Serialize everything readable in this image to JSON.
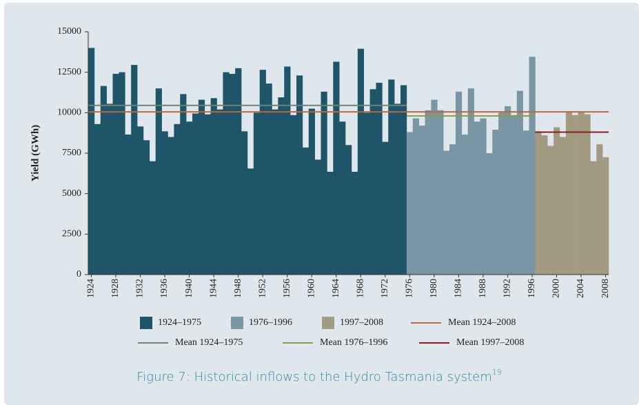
{
  "chart_data": {
    "type": "bar",
    "y_label": "Yield (GWh)",
    "caption": "Figure 7: Historical inflows to the Hydro Tasmania system",
    "caption_note": "19",
    "x": [
      1924,
      1925,
      1926,
      1927,
      1928,
      1929,
      1930,
      1931,
      1932,
      1933,
      1934,
      1935,
      1936,
      1937,
      1938,
      1939,
      1940,
      1941,
      1942,
      1943,
      1944,
      1945,
      1946,
      1947,
      1948,
      1949,
      1950,
      1951,
      1952,
      1953,
      1954,
      1955,
      1956,
      1957,
      1958,
      1959,
      1960,
      1961,
      1962,
      1963,
      1964,
      1965,
      1966,
      1967,
      1968,
      1969,
      1970,
      1971,
      1972,
      1973,
      1974,
      1975,
      1976,
      1977,
      1978,
      1979,
      1980,
      1981,
      1982,
      1983,
      1984,
      1985,
      1986,
      1987,
      1988,
      1989,
      1990,
      1991,
      1992,
      1993,
      1994,
      1995,
      1996,
      1997,
      1998,
      1999,
      2000,
      2001,
      2002,
      2003,
      2004,
      2005,
      2006,
      2007,
      2008
    ],
    "xlim": [
      1923.5,
      2008.5
    ],
    "xticks": [
      1924,
      1928,
      1932,
      1936,
      1940,
      1944,
      1948,
      1952,
      1956,
      1960,
      1964,
      1968,
      1972,
      1976,
      1980,
      1984,
      1988,
      1992,
      1996,
      2000,
      2004,
      2008
    ],
    "ylim": [
      0,
      15000
    ],
    "yticks": [
      0,
      2500,
      5000,
      7500,
      10000,
      12500,
      15000
    ],
    "series": [
      {
        "name": "1924–1975",
        "kind": "bar",
        "color": "#1f5569",
        "values": [
          14000,
          9300,
          11650,
          10550,
          12400,
          12500,
          8650,
          12950,
          9150,
          8300,
          7000,
          11500,
          8850,
          8500,
          9300,
          11150,
          9450,
          9950,
          10800,
          9900,
          10900,
          10200,
          12500,
          12400,
          12750,
          8850,
          6550,
          10000,
          12650,
          11800,
          10200,
          10950,
          12850,
          9850,
          12300,
          7850,
          10250,
          7100,
          11300,
          6350,
          13150,
          9450,
          8000,
          6350,
          13950,
          10000,
          11450,
          11850,
          8200,
          12050,
          10550,
          11700,
          null,
          null,
          null,
          null,
          null,
          null,
          null,
          null,
          null,
          null,
          null,
          null,
          null,
          null,
          null,
          null,
          null,
          null,
          null,
          null,
          null,
          null,
          null,
          null,
          null,
          null,
          null,
          null,
          null,
          null,
          null,
          null,
          null
        ]
      },
      {
        "name": "1976–1996",
        "kind": "bar",
        "color": "#7896a4",
        "values": [
          null,
          null,
          null,
          null,
          null,
          null,
          null,
          null,
          null,
          null,
          null,
          null,
          null,
          null,
          null,
          null,
          null,
          null,
          null,
          null,
          null,
          null,
          null,
          null,
          null,
          null,
          null,
          null,
          null,
          null,
          null,
          null,
          null,
          null,
          null,
          null,
          null,
          null,
          null,
          null,
          null,
          null,
          null,
          null,
          null,
          null,
          null,
          null,
          null,
          null,
          null,
          null,
          8800,
          9650,
          9200,
          10150,
          10800,
          10150,
          7650,
          8050,
          11300,
          8650,
          11500,
          9450,
          9650,
          7500,
          8950,
          10000,
          10400,
          9850,
          11350,
          8900,
          13450,
          null,
          null,
          null,
          null,
          null,
          null,
          null,
          null,
          null,
          null,
          null,
          null
        ]
      },
      {
        "name": "1997–2008",
        "kind": "bar",
        "color": "#a39a82",
        "values": [
          null,
          null,
          null,
          null,
          null,
          null,
          null,
          null,
          null,
          null,
          null,
          null,
          null,
          null,
          null,
          null,
          null,
          null,
          null,
          null,
          null,
          null,
          null,
          null,
          null,
          null,
          null,
          null,
          null,
          null,
          null,
          null,
          null,
          null,
          null,
          null,
          null,
          null,
          null,
          null,
          null,
          null,
          null,
          null,
          null,
          null,
          null,
          null,
          null,
          null,
          null,
          null,
          null,
          null,
          null,
          null,
          null,
          null,
          null,
          null,
          null,
          null,
          null,
          null,
          null,
          null,
          null,
          null,
          null,
          null,
          null,
          null,
          null,
          8850,
          8600,
          7950,
          9100,
          8500,
          10100,
          9850,
          10050,
          9900,
          7000,
          8050,
          7250
        ]
      },
      {
        "name": "Mean 1924–2008",
        "kind": "line",
        "color": "#c0673a",
        "values": [
          10050,
          10050,
          10050,
          10050,
          10050,
          10050,
          10050,
          10050,
          10050,
          10050,
          10050,
          10050,
          10050,
          10050,
          10050,
          10050,
          10050,
          10050,
          10050,
          10050,
          10050,
          10050,
          10050,
          10050,
          10050,
          10050,
          10050,
          10050,
          10050,
          10050,
          10050,
          10050,
          10050,
          10050,
          10050,
          10050,
          10050,
          10050,
          10050,
          10050,
          10050,
          10050,
          10050,
          10050,
          10050,
          10050,
          10050,
          10050,
          10050,
          10050,
          10050,
          10050,
          10050,
          10050,
          10050,
          10050,
          10050,
          10050,
          10050,
          10050,
          10050,
          10050,
          10050,
          10050,
          10050,
          10050,
          10050,
          10050,
          10050,
          10050,
          10050,
          10050,
          10050,
          10050,
          10050,
          10050,
          10050,
          10050,
          10050,
          10050,
          10050,
          10050,
          10050,
          10050,
          10050
        ]
      },
      {
        "name": "Mean 1924–1975",
        "kind": "line",
        "color": "#6f7f7a",
        "values": [
          10450,
          10450,
          10450,
          10450,
          10450,
          10450,
          10450,
          10450,
          10450,
          10450,
          10450,
          10450,
          10450,
          10450,
          10450,
          10450,
          10450,
          10450,
          10450,
          10450,
          10450,
          10450,
          10450,
          10450,
          10450,
          10450,
          10450,
          10450,
          10450,
          10450,
          10450,
          10450,
          10450,
          10450,
          10450,
          10450,
          10450,
          10450,
          10450,
          10450,
          10450,
          10450,
          10450,
          10450,
          10450,
          10450,
          10450,
          10450,
          10450,
          10450,
          10450,
          10450,
          null,
          null,
          null,
          null,
          null,
          null,
          null,
          null,
          null,
          null,
          null,
          null,
          null,
          null,
          null,
          null,
          null,
          null,
          null,
          null,
          null,
          null,
          null,
          null,
          null,
          null,
          null,
          null,
          null,
          null,
          null,
          null,
          null
        ]
      },
      {
        "name": "Mean 1976–1996",
        "kind": "line",
        "color": "#8f9a4a",
        "values": [
          null,
          null,
          null,
          null,
          null,
          null,
          null,
          null,
          null,
          null,
          null,
          null,
          null,
          null,
          null,
          null,
          null,
          null,
          null,
          null,
          null,
          null,
          null,
          null,
          null,
          null,
          null,
          null,
          null,
          null,
          null,
          null,
          null,
          null,
          null,
          null,
          null,
          null,
          null,
          null,
          null,
          null,
          null,
          null,
          null,
          null,
          null,
          null,
          null,
          null,
          null,
          null,
          9800,
          9800,
          9800,
          9800,
          9800,
          9800,
          9800,
          9800,
          9800,
          9800,
          9800,
          9800,
          9800,
          9800,
          9800,
          9800,
          9800,
          9800,
          9800,
          9800,
          9800,
          null,
          null,
          null,
          null,
          null,
          null,
          null,
          null,
          null,
          null,
          null,
          null
        ]
      },
      {
        "name": "Mean 1997–2008",
        "kind": "line",
        "color": "#8b1a1a",
        "values": [
          null,
          null,
          null,
          null,
          null,
          null,
          null,
          null,
          null,
          null,
          null,
          null,
          null,
          null,
          null,
          null,
          null,
          null,
          null,
          null,
          null,
          null,
          null,
          null,
          null,
          null,
          null,
          null,
          null,
          null,
          null,
          null,
          null,
          null,
          null,
          null,
          null,
          null,
          null,
          null,
          null,
          null,
          null,
          null,
          null,
          null,
          null,
          null,
          null,
          null,
          null,
          null,
          null,
          null,
          null,
          null,
          null,
          null,
          null,
          null,
          null,
          null,
          null,
          null,
          null,
          null,
          null,
          null,
          null,
          null,
          null,
          null,
          null,
          8800,
          8800,
          8800,
          8800,
          8800,
          8800,
          8800,
          8800,
          8800,
          8800,
          8800,
          8800
        ]
      }
    ]
  }
}
